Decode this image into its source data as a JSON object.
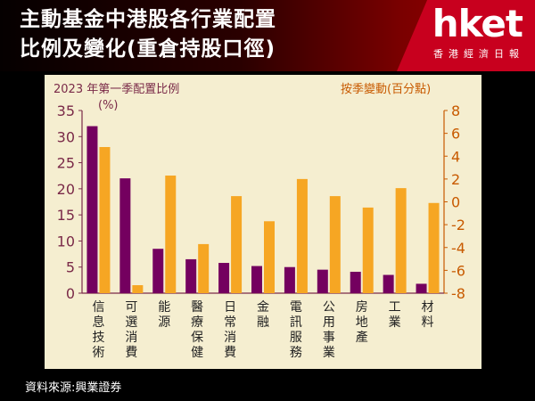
{
  "header": {
    "title_line1": "主動基金中港股各行業配置",
    "title_line2": "比例及變化(重倉持股口徑)",
    "logo": "hket",
    "logo_sub": "香港經濟日報"
  },
  "source": "資料來源:興業證券",
  "colors": {
    "primary": "#74005f",
    "secondary": "#f6a623",
    "panel": "#f5eed0"
  },
  "chart_data": {
    "type": "bar",
    "left_label_line1": "2023 年第一季配置比例",
    "left_label_line2": "(%)",
    "right_label": "按季變動(百分點)",
    "categories": [
      "信息技術",
      "可選消費",
      "能源",
      "醫療保健",
      "日常消費",
      "金融",
      "電訊服務",
      "公用事業",
      "房地產",
      "工業",
      "材料"
    ],
    "series": [
      {
        "axis": "left",
        "values": [
          32,
          22,
          8.5,
          6.5,
          5.8,
          5.2,
          5,
          4.5,
          4.1,
          3.5,
          1.8
        ],
        "color": "#74005f"
      },
      {
        "axis": "right",
        "values": [
          4.8,
          -7.3,
          2.3,
          -3.7,
          0.5,
          -1.7,
          2,
          0.5,
          -0.5,
          1.2,
          -0.1
        ],
        "color": "#f6a623"
      }
    ],
    "left_axis": {
      "min": 0,
      "max": 35,
      "ticks": [
        "0",
        "5",
        "10",
        "15",
        "20",
        "25",
        "30",
        "35"
      ]
    },
    "right_axis": {
      "min": -8,
      "max": 8,
      "ticks": [
        "-8",
        "-6",
        "-4",
        "-2",
        "0",
        "2",
        "4",
        "6",
        "8"
      ]
    },
    "grid": false
  }
}
